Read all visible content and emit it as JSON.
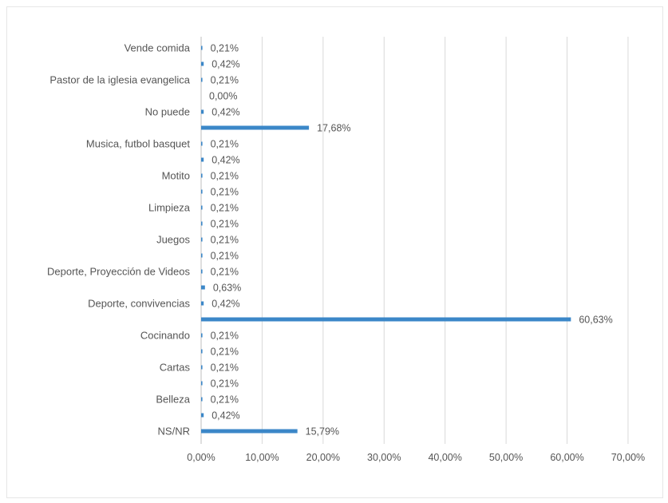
{
  "chart_data": {
    "type": "bar",
    "orientation": "horizontal",
    "title": "",
    "xlabel": "",
    "ylabel": "",
    "xlim": [
      0,
      70
    ],
    "grid": true,
    "legend": "none",
    "bar_color": "#3b87c8",
    "x_ticks": [
      "0,00%",
      "10,00%",
      "20,00%",
      "30,00%",
      "40,00%",
      "50,00%",
      "60,00%",
      "70,00%"
    ],
    "categories": [
      "Vende comida",
      "",
      "Pastor de la iglesia evangelica",
      "",
      "No puede",
      "",
      "Musica, futbol basquet",
      "",
      "Motito",
      "",
      "Limpieza",
      "",
      "Juegos",
      "",
      "Deporte, Proyección de Videos",
      "",
      "Deporte, convivencias",
      "",
      "Cocinando",
      "",
      "Cartas",
      "",
      "Belleza",
      "",
      "NS/NR"
    ],
    "values": [
      0.21,
      0.42,
      0.21,
      0.0,
      0.42,
      17.68,
      0.21,
      0.42,
      0.21,
      0.21,
      0.21,
      0.21,
      0.21,
      0.21,
      0.21,
      0.63,
      0.42,
      60.63,
      0.21,
      0.21,
      0.21,
      0.21,
      0.21,
      0.42,
      15.79
    ],
    "value_labels": [
      "0,21%",
      "0,42%",
      "0,21%",
      "0,00%",
      "0,42%",
      "17,68%",
      "0,21%",
      "0,42%",
      "0,21%",
      "0,21%",
      "0,21%",
      "0,21%",
      "0,21%",
      "0,21%",
      "0,21%",
      "0,63%",
      "0,42%",
      "60,63%",
      "0,21%",
      "0,21%",
      "0,21%",
      "0,21%",
      "0,21%",
      "0,42%",
      "15,79%"
    ]
  }
}
